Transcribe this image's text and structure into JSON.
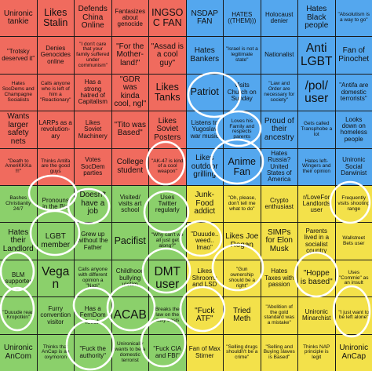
{
  "cells": [
    {
      "text": "Unironic tankie",
      "color": "red",
      "size": "m"
    },
    {
      "text": "Likes Stalin",
      "color": "red",
      "size": "l"
    },
    {
      "text": "Defends China Online",
      "color": "red",
      "size": "m"
    },
    {
      "text": "Fantasizes about genocide",
      "color": "red",
      "size": "s"
    },
    {
      "text": "INGSOC FAN",
      "color": "red",
      "size": "l"
    },
    {
      "text": "NSDAP FAN",
      "color": "blue",
      "size": "m"
    },
    {
      "text": "HATES ((THEM)))",
      "color": "blue",
      "size": "s"
    },
    {
      "text": "Holocaust denier",
      "color": "blue",
      "size": "s"
    },
    {
      "text": "Hates Black people",
      "color": "blue",
      "size": "m"
    },
    {
      "text": "\"Absolutism is a way to go\"",
      "color": "blue",
      "size": "xs"
    },
    {
      "text": "\"Trotsky deserved it\"",
      "color": "red",
      "size": "s"
    },
    {
      "text": "Denies Genocides online",
      "color": "red",
      "size": "s"
    },
    {
      "text": "\"I don't care that your family suffered under communism\"",
      "color": "red",
      "size": "xs"
    },
    {
      "text": "\"For the Mother-land!\"",
      "color": "red",
      "size": "m"
    },
    {
      "text": "\"Assad is a cool guy\"",
      "color": "red",
      "size": "m"
    },
    {
      "text": "Hates Bankers",
      "color": "blue",
      "size": "m"
    },
    {
      "text": "\"Israel is not a legitimate state\"",
      "color": "blue",
      "size": "xs"
    },
    {
      "text": "Nationalist",
      "color": "blue",
      "size": "s"
    },
    {
      "text": "Anti LGBT",
      "color": "blue",
      "size": "xl"
    },
    {
      "text": "Fan of Pinochet",
      "color": "blue",
      "size": "m"
    },
    {
      "text": "Hates SocDems and Champagne Socialists",
      "color": "red",
      "size": "xs"
    },
    {
      "text": "Calls anyone who is left of him a \"Reactionary\"",
      "color": "red",
      "size": "xs"
    },
    {
      "text": "Has a strong hatred of Capitalism",
      "color": "red",
      "size": "s"
    },
    {
      "text": "\"GDR was kinda cool, ngl\"",
      "color": "red",
      "size": "m"
    },
    {
      "text": "Likes Tanks",
      "color": "red",
      "size": "l"
    },
    {
      "text": "Patriot",
      "color": "blue",
      "size": "l"
    },
    {
      "text": "Visits Church on Sunday",
      "color": "blue",
      "size": "s"
    },
    {
      "text": "\"Law and Order are necessary for society\"",
      "color": "blue",
      "size": "xs"
    },
    {
      "text": "/pol/ user",
      "color": "blue",
      "size": "xl"
    },
    {
      "text": "\"Antifa are domestic terrorists\"",
      "color": "blue",
      "size": "s"
    },
    {
      "text": "Wants larger safety nets",
      "color": "red",
      "size": "m"
    },
    {
      "text": "LARPs as a revolution-ary",
      "color": "red",
      "size": "s"
    },
    {
      "text": "Likes Soviet Machinery",
      "color": "red",
      "size": "s"
    },
    {
      "text": "\"Tito was Based\"",
      "color": "red",
      "size": "m"
    },
    {
      "text": "Likes Soviet Posters",
      "color": "red",
      "size": "m"
    },
    {
      "text": "Listens to Yugoslav war music",
      "color": "blue",
      "size": "s"
    },
    {
      "text": "Loves his Family and respects parents",
      "color": "blue",
      "size": "xs"
    },
    {
      "text": "Proud of their ancestry",
      "color": "blue",
      "size": "m"
    },
    {
      "text": "Gets called Transphobe a lot",
      "color": "blue",
      "size": "xs"
    },
    {
      "text": "Looks down on homeless people",
      "color": "blue",
      "size": "s"
    },
    {
      "text": "\"Death to AmeriKKKa !!!\"",
      "color": "red",
      "size": "xs"
    },
    {
      "text": "Thinks Antifa are the good guys",
      "color": "red",
      "size": "xs"
    },
    {
      "text": "Votes SocDem parties",
      "color": "red",
      "size": "s"
    },
    {
      "text": "College student",
      "color": "red",
      "size": "m"
    },
    {
      "text": "\"AK-47 is kind of a cool weapon\"",
      "color": "red",
      "size": "xs"
    },
    {
      "text": "Likes outdoor grilling",
      "color": "blue",
      "size": "m"
    },
    {
      "text": "Anime Fan",
      "color": "blue",
      "size": "l"
    },
    {
      "text": "Hates Russia? United States of America",
      "color": "blue",
      "size": "s"
    },
    {
      "text": "Hates left-Wingers and their opinion",
      "color": "blue",
      "size": "xs"
    },
    {
      "text": "Unironic Social Darwinist",
      "color": "blue",
      "size": "s"
    },
    {
      "text": "Bashes Christianity 24/7",
      "color": "green",
      "size": "xs"
    },
    {
      "text": "Pronouns in the Bio",
      "color": "green",
      "size": "s"
    },
    {
      "text": "Doesn't have a job",
      "color": "green",
      "size": "m"
    },
    {
      "text": "Visited/ visits art school",
      "color": "green",
      "size": "s"
    },
    {
      "text": "Uses Twitter regularly",
      "color": "green",
      "size": "s"
    },
    {
      "text": "Junk-Food addict",
      "color": "yellow",
      "size": "m"
    },
    {
      "text": "\"Oh, please, don't tell me what to do\"",
      "color": "yellow",
      "size": "xs"
    },
    {
      "text": "Crypto enthusiast",
      "color": "yellow",
      "size": "s"
    },
    {
      "text": "r/LoveFor Landlords user",
      "color": "yellow",
      "size": "s"
    },
    {
      "text": "Frequently visits shooting range",
      "color": "yellow",
      "size": "xs"
    },
    {
      "text": "Hates their Landlord",
      "color": "green",
      "size": "m"
    },
    {
      "text": "LGBT member",
      "color": "green",
      "size": "m"
    },
    {
      "text": "Grew up without the Father",
      "color": "green",
      "size": "s"
    },
    {
      "text": "Pacifist",
      "color": "green",
      "size": "l"
    },
    {
      "text": "\"Why can't we all just get along?\"",
      "color": "green",
      "size": "xs"
    },
    {
      "text": "\"Duuude.. weed.. lmao\"",
      "color": "yellow",
      "size": "s"
    },
    {
      "text": "Likes Joe Rogan",
      "color": "yellow",
      "size": "m"
    },
    {
      "text": "SIMPs for Elon Musk",
      "color": "yellow",
      "size": "m"
    },
    {
      "text": "Parents lived in a socialist country",
      "color": "yellow",
      "size": "s"
    },
    {
      "text": "Wallstreet Bets user",
      "color": "yellow",
      "size": "xs"
    },
    {
      "text": "BLM supporter",
      "color": "green",
      "size": "s"
    },
    {
      "text": "Vegan",
      "color": "green",
      "size": "xl"
    },
    {
      "text": "Calls anyone with different opinion a \"Nazi\"",
      "color": "green",
      "size": "xs"
    },
    {
      "text": "Childhood bullying victim",
      "color": "green",
      "size": "s"
    },
    {
      "text": "DMT user",
      "color": "green",
      "size": "xl"
    },
    {
      "text": "Likes Shrooms and LSD",
      "color": "yellow",
      "size": "s"
    },
    {
      "text": "\"Gun ownership should be a right\"",
      "color": "yellow",
      "size": "xs"
    },
    {
      "text": "Hates Taxes with passion",
      "color": "yellow",
      "size": "s"
    },
    {
      "text": "\"Hoppe is based\"",
      "color": "yellow",
      "size": "m"
    },
    {
      "text": "Uses \"Commie\" as an insult",
      "color": "yellow",
      "size": "xs"
    },
    {
      "text": "\"Duuude read Kropotkin\"",
      "color": "green",
      "size": "xs"
    },
    {
      "text": "Furry convention visitor",
      "color": "green",
      "size": "s"
    },
    {
      "text": "Has a FemDom fetish",
      "color": "green",
      "size": "s"
    },
    {
      "text": "ACAB",
      "color": "green",
      "size": "xl"
    },
    {
      "text": "Breaks the law on the daily basis",
      "color": "green",
      "size": "xs"
    },
    {
      "text": "\"Fuck ATF\"",
      "color": "yellow",
      "size": "m"
    },
    {
      "text": "Tried Meth",
      "color": "yellow",
      "size": "m"
    },
    {
      "text": "\"Abolition of the gold standard was a mistake\"",
      "color": "yellow",
      "size": "xs"
    },
    {
      "text": "Unironic Minarchist",
      "color": "yellow",
      "size": "s"
    },
    {
      "text": "\"I just want to be left alone\"",
      "color": "yellow",
      "size": "xs"
    },
    {
      "text": "Unironic AnCom",
      "color": "green",
      "size": "m"
    },
    {
      "text": "Thinks that AnCap is an oxymoron",
      "color": "green",
      "size": "xs"
    },
    {
      "text": "\"Fuck the authority\"",
      "color": "green",
      "size": "s"
    },
    {
      "text": "Unironically wants to be a domestic terrorist",
      "color": "green",
      "size": "xs"
    },
    {
      "text": "\"Fuck CIA and FBI\"",
      "color": "green",
      "size": "s"
    },
    {
      "text": "Fan of Max Stirner",
      "color": "yellow",
      "size": "s"
    },
    {
      "text": "\"Selling drugs shouldn't be a crime\"",
      "color": "yellow",
      "size": "xs"
    },
    {
      "text": "\"Selling and Buying slaves is Based\"",
      "color": "yellow",
      "size": "xs"
    },
    {
      "text": "Thinks NAP principle is legit",
      "color": "yellow",
      "size": "xs"
    },
    {
      "text": "Unironic AnCap",
      "color": "yellow",
      "size": "m"
    }
  ]
}
